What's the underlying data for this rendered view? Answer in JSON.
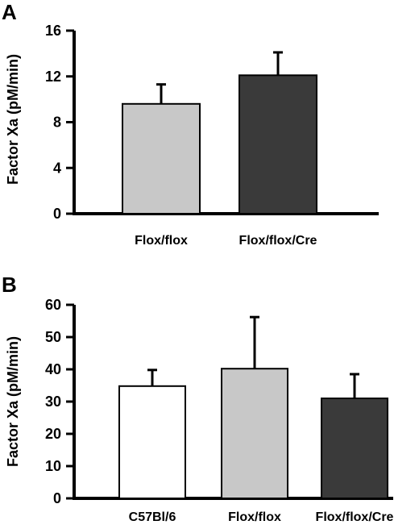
{
  "chart_data": [
    {
      "panel": "A",
      "type": "bar",
      "ylabel": "Factor Xa (pM/min)",
      "ylim": [
        0,
        16
      ],
      "yticks": [
        "0",
        "4",
        "8",
        "12",
        "16"
      ],
      "categories": [
        "Flox/flox",
        "Flox/flox/Cre"
      ],
      "series": [
        {
          "values": [
            9.6,
            12.1
          ],
          "errors": [
            1.7,
            2.0
          ],
          "colors": [
            "#c8c8c8",
            "#3a3a3a"
          ]
        }
      ]
    },
    {
      "panel": "B",
      "type": "bar",
      "ylabel": "Factor Xa (pM/min)",
      "ylim": [
        0,
        60
      ],
      "yticks": [
        "0",
        "10",
        "20",
        "30",
        "40",
        "50",
        "60"
      ],
      "categories": [
        "C57Bl/6",
        "Flox/flox",
        "Flox/flox/Cre"
      ],
      "series": [
        {
          "values": [
            34.8,
            40.2,
            31.0
          ],
          "errors": [
            5.0,
            16.0,
            7.5
          ],
          "colors": [
            "#ffffff",
            "#c8c8c8",
            "#3a3a3a"
          ]
        }
      ]
    }
  ]
}
